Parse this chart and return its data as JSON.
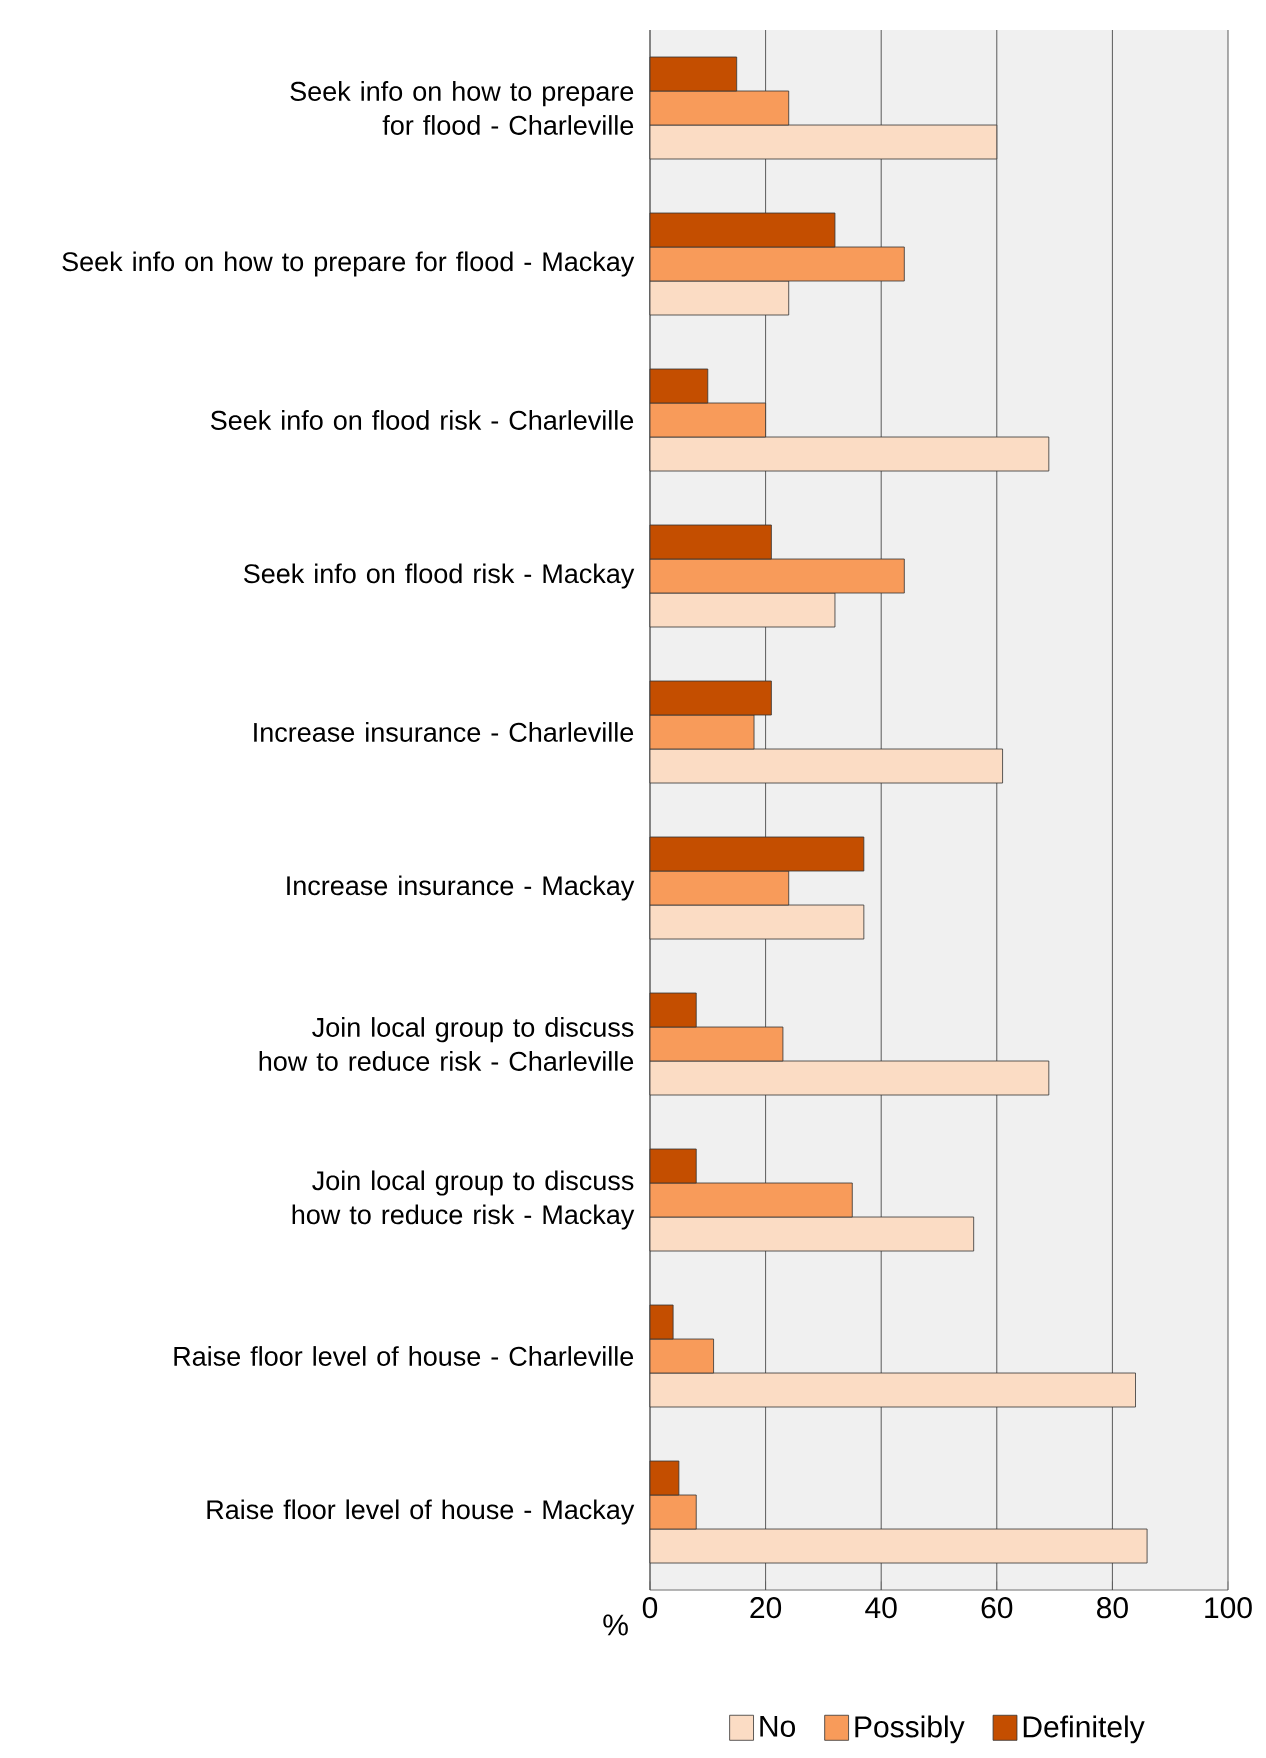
{
  "chart_data": {
    "type": "bar",
    "orientation": "horizontal",
    "categories": [
      "Seek info on how to prepare for flood - Charleville",
      "Seek info on how to prepare for flood - Mackay",
      "Seek info on flood risk - Charleville",
      "Seek info on flood risk - Mackay",
      "Increase insurance - Charleville",
      "Increase insurance - Mackay",
      "Join local group to discuss how to reduce risk - Charleville",
      "Join local group to discuss how to reduce risk - Mackay",
      "Raise floor level of house - Charleville",
      "Raise floor level of house - Mackay"
    ],
    "series": [
      {
        "name": "No",
        "color": "#fbdcc4",
        "values": [
          60,
          24,
          69,
          32,
          61,
          37,
          69,
          56,
          84,
          86
        ]
      },
      {
        "name": "Possibly",
        "color": "#f89b5a",
        "values": [
          24,
          44,
          20,
          44,
          18,
          24,
          23,
          35,
          11,
          8
        ]
      },
      {
        "name": "Definitely",
        "color": "#c44e00",
        "values": [
          15,
          32,
          10,
          21,
          21,
          37,
          8,
          8,
          4,
          5
        ]
      }
    ],
    "xlabel": "%",
    "xlim": [
      0,
      100
    ],
    "xticks": [
      0,
      20,
      40,
      60,
      80,
      100
    ],
    "grid": "x",
    "legend": "bottom"
  }
}
